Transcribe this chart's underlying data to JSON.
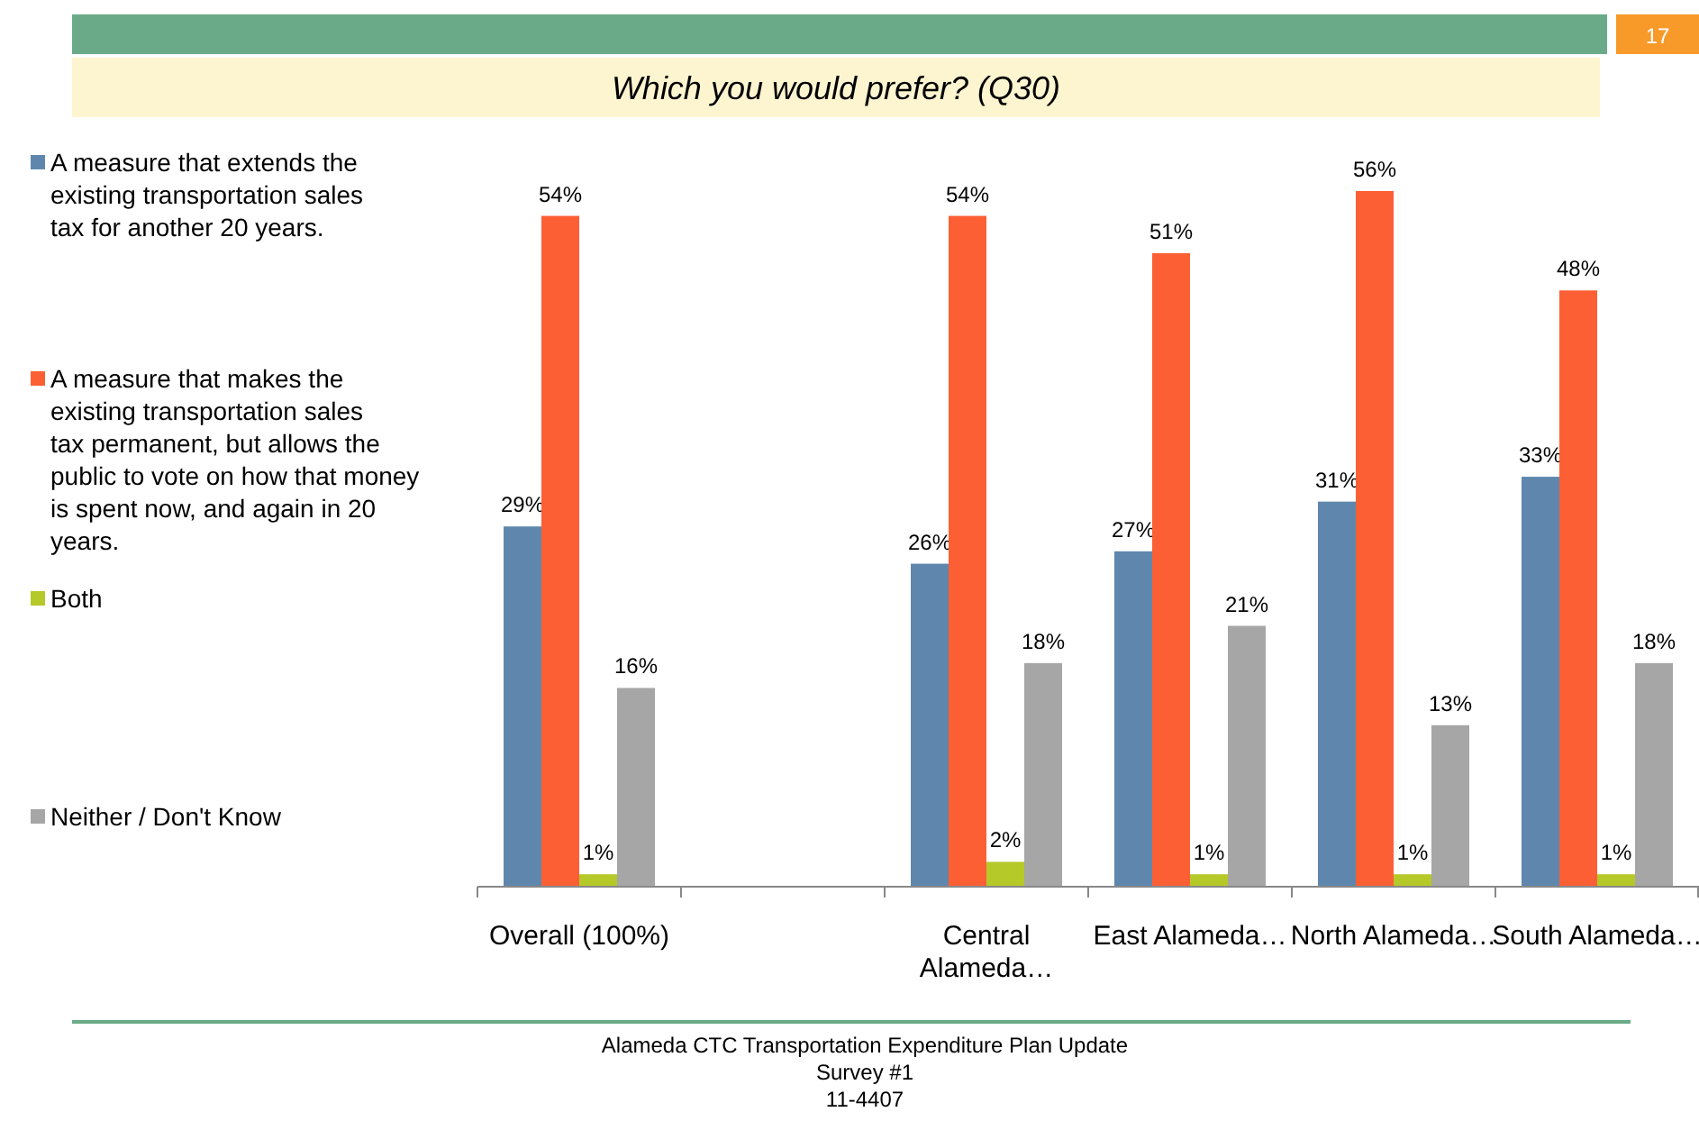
{
  "chart_data": {
    "type": "bar",
    "title": "Which you would prefer? (Q30)",
    "categories": [
      "Overall (100%)",
      null,
      "Central Alameda…",
      "East Alameda…",
      "North Alameda…",
      "South Alameda…"
    ],
    "series": [
      {
        "name": "A measure that extends the existing transportation sales tax for another 20 years.",
        "color": "#5f87ad",
        "values": [
          29,
          null,
          26,
          27,
          31,
          33
        ],
        "value_labels": [
          "29%",
          null,
          "26%",
          "27%",
          "31%",
          "33%"
        ]
      },
      {
        "name": "A measure that makes the existing transportation sales tax permanent, but allows the public to vote on how that money is spent now, and again in 20 years.",
        "color": "#fd5f35",
        "values": [
          54,
          null,
          54,
          51,
          56,
          48
        ],
        "value_labels": [
          "54%",
          null,
          "54%",
          "51%",
          "56%",
          "48%"
        ]
      },
      {
        "name": "Both",
        "color": "#b5c928",
        "values": [
          1,
          null,
          2,
          1,
          1,
          1
        ],
        "value_labels": [
          "1%",
          null,
          "2%",
          "1%",
          "1%",
          "1%"
        ]
      },
      {
        "name": "Neither / Don't Know",
        "color": "#a6a6a6",
        "values": [
          16,
          null,
          18,
          21,
          13,
          18
        ],
        "value_labels": [
          "16%",
          null,
          "18%",
          "21%",
          "13%",
          "18%"
        ]
      }
    ],
    "legend": "left",
    "annotations": [
      "17",
      "Alameda CTC Transportation Expenditure Plan Update",
      "Survey #1",
      "11-4407"
    ]
  }
}
